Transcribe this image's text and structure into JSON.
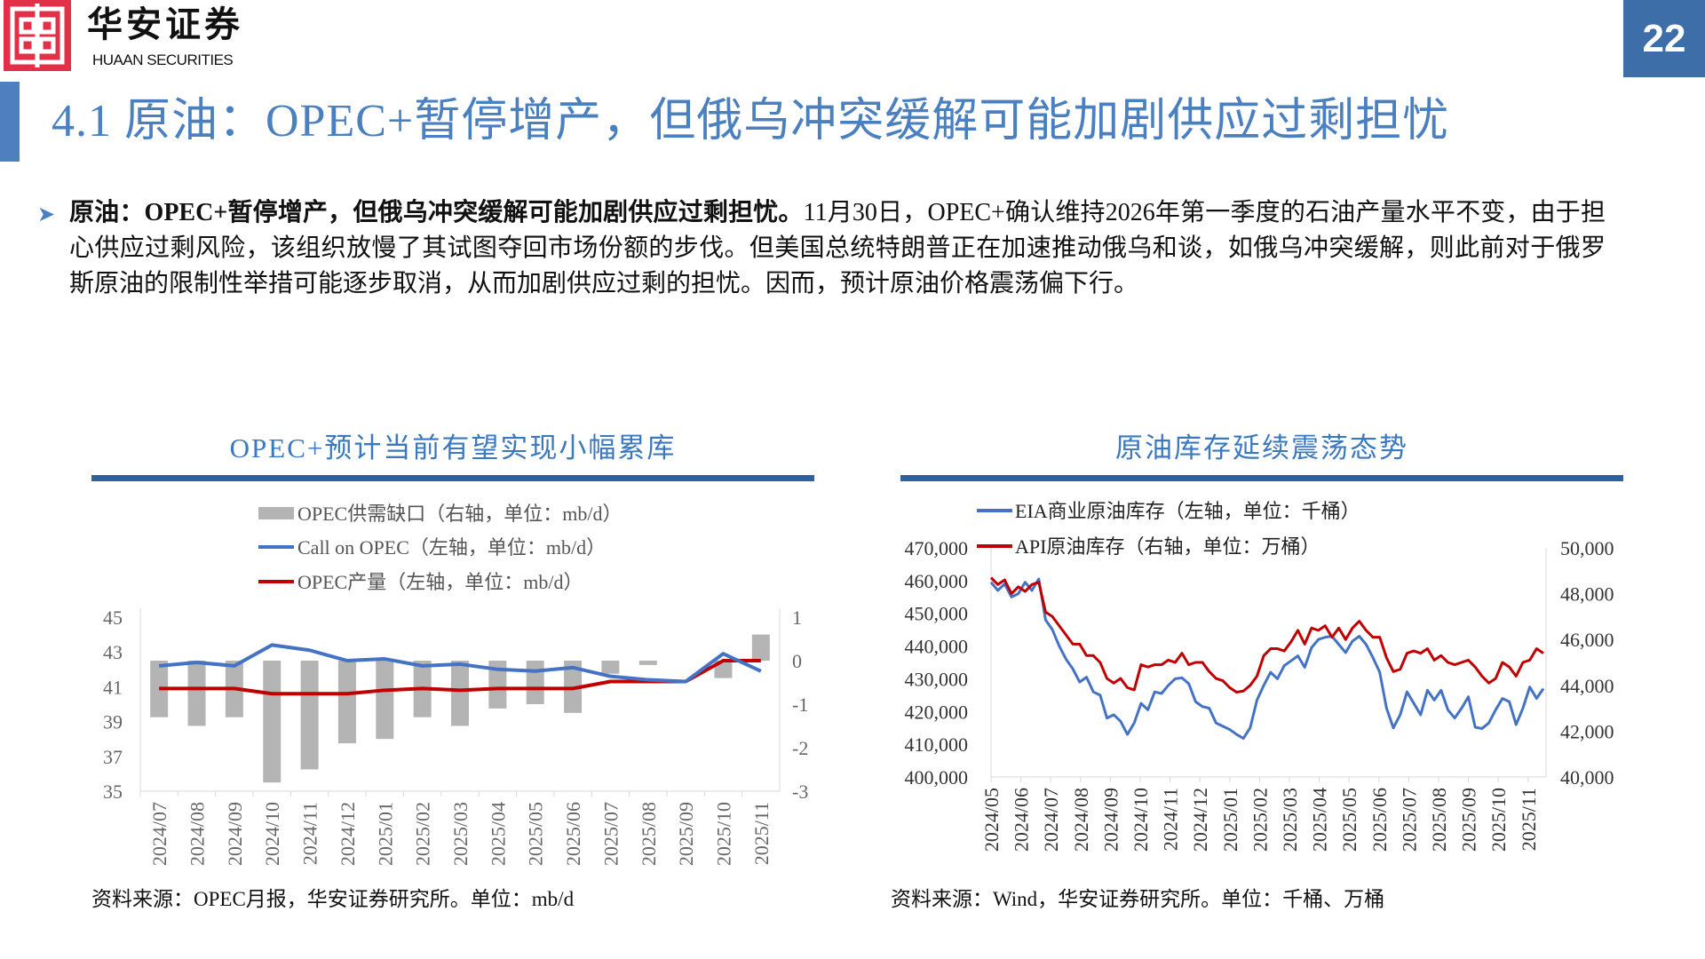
{
  "header": {
    "logo_cn": "华安证券",
    "logo_en": "HUAAN SECURITIES",
    "page_number": "22",
    "title": "4.1 原油：OPEC+暂停增产，但俄乌冲突缓解可能加剧供应过剩担忧"
  },
  "bullet": {
    "icon": "chevron-right-icon",
    "bold": "原油：OPEC+暂停增产，但俄乌冲突缓解可能加剧供应过剩担忧。",
    "text": "11月30日，OPEC+确认维持2026年第一季度的石油产量水平不变，由于担心供应过剩风险，该组织放慢了其试图夺回市场份额的步伐。但美国总统特朗普正在加速推动俄乌和谈，如俄乌冲突缓解，则此前对于俄罗斯原油的限制性举措可能逐步取消，从而加剧供应过剩的担忧。因而，预计原油价格震荡偏下行。"
  },
  "colors": {
    "accent": "#4a7fc0",
    "bar": "#b4b4b4",
    "blue_line": "#4472c4",
    "red_line": "#c00000",
    "logo": "#e33049"
  },
  "left_source": "资料来源：OPEC月报，华安证券研究所。单位：mb/d",
  "right_source": "资料来源：Wind，华安证券研究所。单位：千桶、万桶",
  "chart_data": [
    {
      "type": "bar+line",
      "title": "OPEC+预计当前有望实现小幅累库",
      "categories": [
        "2024/07",
        "2024/08",
        "2024/09",
        "2024/10",
        "2024/11",
        "2024/12",
        "2025/01",
        "2025/02",
        "2025/03",
        "2025/04",
        "2025/05",
        "2025/06",
        "2025/07",
        "2025/08",
        "2025/09",
        "2025/10",
        "2025/11"
      ],
      "y_left": {
        "range": [
          35,
          45
        ],
        "ticks": [
          "45",
          "43",
          "41",
          "39",
          "37",
          "35"
        ]
      },
      "y_right": {
        "range": [
          -3,
          1
        ],
        "ticks": [
          "1",
          "0",
          "-1",
          "-2",
          "-3"
        ]
      },
      "legend_placement": "top",
      "series": [
        {
          "name": "OPEC供需缺口（右轴，单位：mb/d）",
          "type": "bar",
          "axis": "right",
          "values": [
            -1.3,
            -1.5,
            -1.3,
            -2.8,
            -2.5,
            -1.9,
            -1.8,
            -1.3,
            -1.5,
            -1.1,
            -1.0,
            -1.2,
            -0.3,
            -0.1,
            0.0,
            -0.4,
            0.6
          ]
        },
        {
          "name": "Call on OPEC（左轴，单位：mb/d）",
          "type": "line",
          "axis": "left",
          "values": [
            42.2,
            42.4,
            42.2,
            43.4,
            43.1,
            42.5,
            42.6,
            42.2,
            42.3,
            42.0,
            41.9,
            42.1,
            41.6,
            41.4,
            41.3,
            42.9,
            41.9
          ]
        },
        {
          "name": "OPEC产量（左轴，单位：mb/d）",
          "type": "line",
          "axis": "left",
          "values": [
            40.9,
            40.9,
            40.9,
            40.6,
            40.6,
            40.6,
            40.8,
            40.9,
            40.8,
            40.9,
            40.9,
            40.9,
            41.3,
            41.3,
            41.3,
            42.5,
            42.5
          ]
        }
      ]
    },
    {
      "type": "line",
      "title": "原油库存延续震荡态势",
      "x_ticks": [
        "2024/05",
        "2024/06",
        "2024/07",
        "2024/08",
        "2024/09",
        "2024/10",
        "2024/11",
        "2024/12",
        "2025/01",
        "2025/02",
        "2025/03",
        "2025/04",
        "2025/05",
        "2025/06",
        "2025/07",
        "2025/08",
        "2025/09",
        "2025/10",
        "2025/11"
      ],
      "y_left": {
        "range": [
          400000,
          470000
        ],
        "ticks": [
          "470,000",
          "460,000",
          "450,000",
          "440,000",
          "430,000",
          "420,000",
          "410,000",
          "400,000"
        ]
      },
      "y_right": {
        "range": [
          40000,
          50000
        ],
        "ticks": [
          "50,000",
          "48,000",
          "46,000",
          "44,000",
          "42,000",
          "40,000"
        ]
      },
      "legend_placement": "top-left",
      "series": [
        {
          "name": "EIA商业原油库存（左轴，单位：千桶）",
          "axis": "left",
          "values": [
            459500,
            457000,
            459000,
            455000,
            456000,
            459500,
            457000,
            460500,
            448000,
            445000,
            440000,
            436000,
            433000,
            429000,
            430500,
            426000,
            425000,
            418000,
            419000,
            417000,
            413000,
            416500,
            422500,
            420500,
            426000,
            425500,
            428000,
            430000,
            430300,
            428500,
            423000,
            421500,
            421000,
            416500,
            415500,
            414500,
            413000,
            411800,
            415000,
            423500,
            428000,
            432000,
            430000,
            434000,
            435500,
            437000,
            433500,
            439500,
            442000,
            442700,
            443000,
            440500,
            438000,
            441500,
            443000,
            440500,
            436500,
            432000,
            421000,
            415000,
            419000,
            426000,
            422500,
            419000,
            426500,
            423500,
            426500,
            420500,
            418000,
            421000,
            424500,
            415200,
            414800,
            416500,
            420500,
            424000,
            423000,
            416000,
            421000,
            427500,
            424000,
            427000
          ]
        },
        {
          "name": "API原油库存（右轴，单位：万桶）",
          "axis": "right",
          "values": [
            48700,
            48400,
            48600,
            48000,
            48300,
            48100,
            48400,
            48500,
            47200,
            47000,
            46600,
            46200,
            45800,
            45800,
            45300,
            45300,
            45000,
            44300,
            44100,
            44300,
            43900,
            43800,
            44900,
            44800,
            44900,
            44900,
            45100,
            45000,
            45400,
            44900,
            45000,
            45000,
            44600,
            44300,
            44200,
            43900,
            43700,
            43750,
            44000,
            44400,
            45300,
            45600,
            45600,
            45500,
            45900,
            46400,
            45800,
            46500,
            46400,
            46600,
            46100,
            46500,
            46000,
            46500,
            46800,
            46400,
            46100,
            46100,
            45200,
            44600,
            44700,
            45400,
            45500,
            45400,
            45600,
            45100,
            45300,
            45000,
            44900,
            45000,
            45100,
            44800,
            44400,
            44100,
            44300,
            45000,
            44800,
            44400,
            45000,
            45100,
            45600,
            45400
          ]
        }
      ]
    }
  ]
}
